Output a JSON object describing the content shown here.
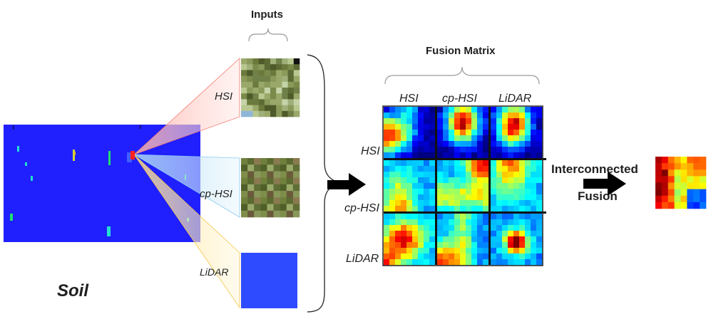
{
  "labels": {
    "inputs": "Inputs",
    "fusion_matrix": "Fusion Matrix",
    "soil": "Soil",
    "interconnected": "Interconnected",
    "fusion": "Fusion"
  },
  "input_names": [
    "HSI",
    "cp-HSI",
    "LiDAR"
  ],
  "matrix_columns": [
    "HSI",
    "cp-HSI",
    "LiDAR"
  ],
  "matrix_rows": [
    "HSI",
    "cp-HSI",
    "LiDAR"
  ],
  "colors": {
    "soil_map": "#2020ff",
    "lidar_patch": "#2f4bff",
    "connector_hsi": "#ffb0a8",
    "connector_cphsi": "#9fd0f0",
    "connector_lidar": "#ffe08a",
    "arrow": "#000000",
    "grid_line": "#111111"
  }
}
